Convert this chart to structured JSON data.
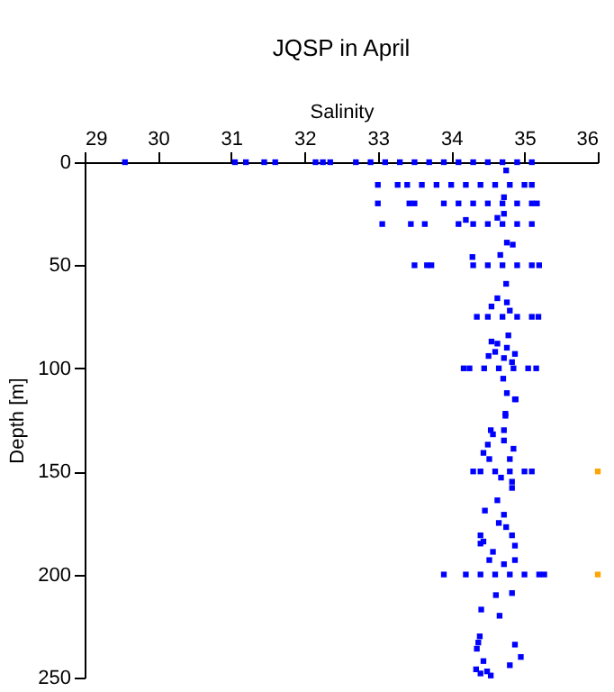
{
  "chart_data": {
    "type": "scatter",
    "title": "JQSP in April",
    "xlabel": "Salinity",
    "ylabel": "Depth [m]",
    "xlim": [
      29,
      36
    ],
    "xticks": [
      29,
      30,
      31,
      32,
      33,
      34,
      35,
      36
    ],
    "ylim": [
      250,
      0
    ],
    "yticks": [
      0,
      50,
      100,
      150,
      200,
      250
    ],
    "grid": false,
    "legend": false,
    "marker": "square",
    "series": [
      {
        "color": "#0000ff",
        "x": [
          29.55,
          31.05,
          31.2,
          31.45,
          31.6,
          32.15,
          32.25,
          32.35,
          32.7,
          32.9,
          33.1,
          33.3,
          33.5,
          33.7,
          33.9,
          34.1,
          34.3,
          34.5,
          34.7,
          34.9,
          35.1,
          33.0,
          33.27,
          33.4,
          33.6,
          33.8,
          34.0,
          34.2,
          34.4,
          34.6,
          34.8,
          35.0,
          35.1,
          33.0,
          33.43,
          33.5,
          33.9,
          34.1,
          34.3,
          34.5,
          34.7,
          34.9,
          35.1,
          35.17,
          33.06,
          33.45,
          33.64,
          34.1,
          34.3,
          34.5,
          34.7,
          34.9,
          35.1,
          33.5,
          33.67,
          33.73,
          34.3,
          34.5,
          34.7,
          34.9,
          35.1,
          35.2,
          34.35,
          34.5,
          34.7,
          34.9,
          35.1,
          35.19,
          34.17,
          34.25,
          34.45,
          34.65,
          34.85,
          35.05,
          35.16,
          34.3,
          34.4,
          34.6,
          34.8,
          35.0,
          35.1,
          33.9,
          34.2,
          34.4,
          34.6,
          34.8,
          35.0,
          35.2,
          35.27,
          34.75,
          34.72,
          34.72,
          34.2,
          34.63,
          34.76,
          34.84,
          34.29,
          34.67,
          34.75,
          34.63,
          34.76,
          34.55,
          34.8,
          34.78,
          34.55,
          34.63,
          34.76,
          34.6,
          34.51,
          34.87,
          34.72,
          34.83,
          34.71,
          34.76,
          34.88,
          34.74,
          34.87,
          34.74,
          34.54,
          34.72,
          34.57,
          34.72,
          34.5,
          34.44,
          34.85,
          34.52,
          34.8,
          34.68,
          34.83,
          34.83,
          34.63,
          34.46,
          34.72,
          34.65,
          34.75,
          34.83,
          34.4,
          34.44,
          34.4,
          34.87,
          34.57,
          34.52,
          34.87,
          34.72,
          34.61,
          34.83,
          34.41,
          34.66,
          34.39,
          34.37,
          34.35,
          34.87,
          34.44,
          34.95,
          34.8,
          34.34,
          34.4,
          34.54,
          34.49
        ],
        "values": [
          0,
          0,
          0,
          0,
          0,
          0,
          0,
          0,
          0,
          0,
          0,
          0,
          0,
          0,
          0,
          0,
          0,
          0,
          0,
          0,
          0,
          11,
          11,
          11,
          11,
          11,
          11,
          11,
          11,
          11,
          11,
          11,
          11,
          20,
          20,
          20,
          20,
          20,
          20,
          20,
          20,
          20,
          20,
          20,
          30,
          30,
          30,
          30,
          30,
          30,
          30,
          30,
          30,
          50,
          50,
          50,
          50,
          50,
          50,
          50,
          50,
          50,
          75,
          75,
          75,
          75,
          75,
          75,
          100,
          100,
          100,
          100,
          100,
          100,
          100,
          150,
          150,
          150,
          150,
          150,
          150,
          200,
          200,
          200,
          200,
          200,
          200,
          200,
          200,
          4,
          17,
          25,
          28,
          27,
          39,
          40,
          46,
          45,
          59,
          66,
          68,
          70,
          72,
          84,
          87,
          88,
          90,
          92,
          94,
          93,
          95,
          97,
          105,
          112,
          115,
          122,
          115,
          123,
          130,
          130,
          132,
          135,
          137,
          141,
          139,
          144,
          144,
          153,
          155,
          158,
          164,
          169,
          171,
          175,
          177,
          181,
          181,
          184,
          185,
          186,
          189,
          193,
          193,
          195,
          210,
          209,
          217,
          220,
          230,
          233,
          236,
          234,
          242,
          240,
          244,
          246,
          248,
          249,
          247
        ]
      },
      {
        "color": "#ffa500",
        "x": [
          36,
          36
        ],
        "values": [
          150,
          200
        ]
      }
    ]
  }
}
